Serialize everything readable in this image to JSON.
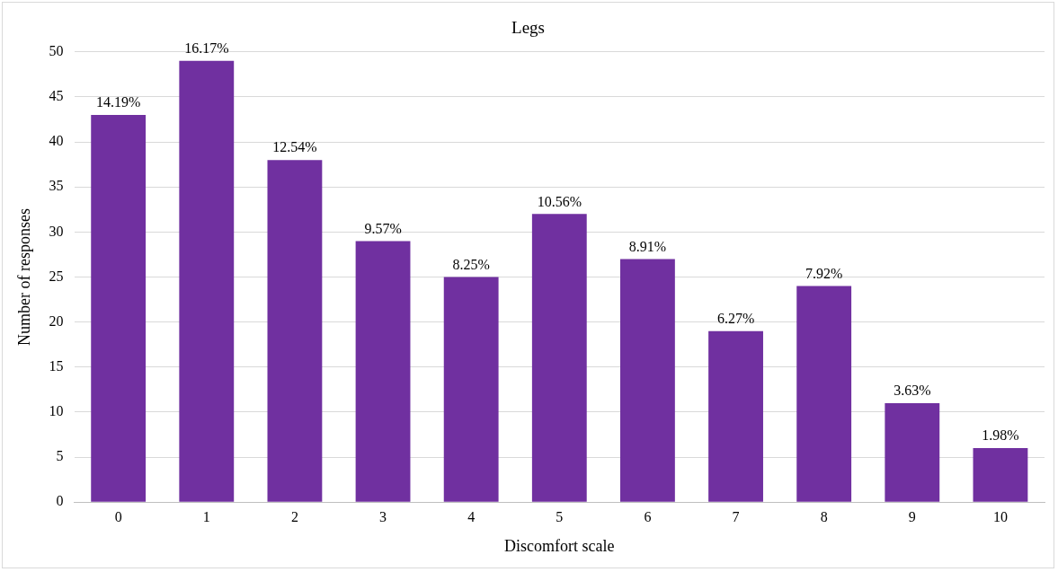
{
  "chart_data": {
    "type": "bar",
    "title": "Legs",
    "xlabel": "Discomfort scale",
    "ylabel": "Number of responses",
    "categories": [
      "0",
      "1",
      "2",
      "3",
      "4",
      "5",
      "6",
      "7",
      "8",
      "9",
      "10"
    ],
    "values": [
      43,
      49,
      38,
      29,
      25,
      32,
      27,
      19,
      24,
      11,
      6
    ],
    "annotations": [
      {
        "text": "14.19%",
        "x": "0",
        "y": 43
      },
      {
        "text": "16.17%",
        "x": "1",
        "y": 49
      },
      {
        "text": "12.54%",
        "x": "2",
        "y": 38
      },
      {
        "text": "9.57%",
        "x": "3",
        "y": 29
      },
      {
        "text": "8.25%",
        "x": "4",
        "y": 25
      },
      {
        "text": "10.56%",
        "x": "5",
        "y": 32
      },
      {
        "text": "8.91%",
        "x": "6",
        "y": 27
      },
      {
        "text": "6.27%",
        "x": "7",
        "y": 19
      },
      {
        "text": "7.92%",
        "x": "8",
        "y": 24
      },
      {
        "text": "3.63%",
        "x": "9",
        "y": 11
      },
      {
        "text": "1.98%",
        "x": "10",
        "y": 6
      }
    ],
    "color": "#7030a0",
    "ylim": [
      0,
      50
    ],
    "yticks": [
      0,
      5,
      10,
      15,
      20,
      25,
      30,
      35,
      40,
      45,
      50
    ],
    "grid": "y",
    "legend": false
  }
}
